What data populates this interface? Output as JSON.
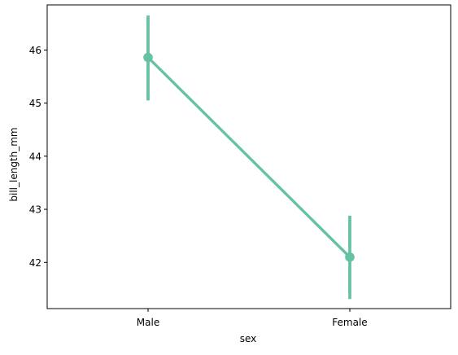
{
  "chart_data": {
    "type": "line",
    "categories": [
      "Male",
      "Female"
    ],
    "series": [
      {
        "values": [
          45.86,
          42.1
        ],
        "ci_low": [
          45.05,
          41.31
        ],
        "ci_high": [
          46.65,
          42.88
        ],
        "color": "#66c2a5"
      }
    ],
    "xlabel": "sex",
    "ylabel": "bill_length_mm",
    "ylim": [
      41.13,
      46.85
    ],
    "yticks": [
      42,
      43,
      44,
      45,
      46
    ],
    "grid": false
  }
}
